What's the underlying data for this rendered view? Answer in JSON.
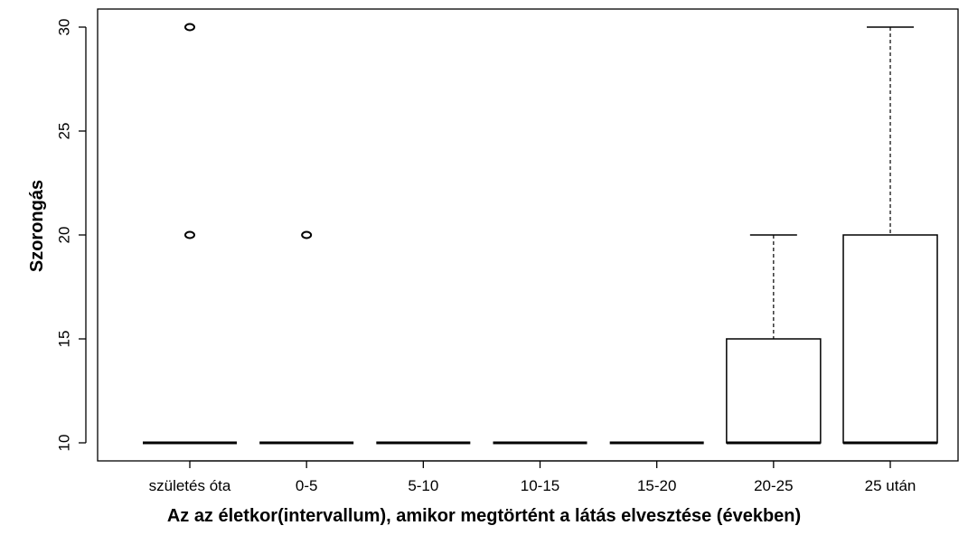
{
  "chart_data": {
    "type": "boxplot",
    "title": "",
    "xlabel": "Az az életkor(intervallum), amikor megtörtént a látás elvesztése (években)",
    "ylabel": "Szorongás",
    "ylim": [
      9.5,
      30.8
    ],
    "yticks": [
      "10",
      "15",
      "20",
      "25",
      "30"
    ],
    "ytick_values": [
      10,
      15,
      20,
      25,
      30
    ],
    "categories": [
      "születés óta",
      "0-5",
      "5-10",
      "10-15",
      "15-20",
      "20-25",
      "25 után"
    ],
    "boxes": [
      {
        "category": "születés óta",
        "min": 10,
        "q1": 10,
        "median": 10,
        "q3": 10,
        "max": 10,
        "outliers": [
          20,
          30
        ]
      },
      {
        "category": "0-5",
        "min": 10,
        "q1": 10,
        "median": 10,
        "q3": 10,
        "max": 10,
        "outliers": [
          20
        ]
      },
      {
        "category": "5-10",
        "min": 10,
        "q1": 10,
        "median": 10,
        "q3": 10,
        "max": 10,
        "outliers": []
      },
      {
        "category": "10-15",
        "min": 10,
        "q1": 10,
        "median": 10,
        "q3": 10,
        "max": 10,
        "outliers": []
      },
      {
        "category": "15-20",
        "min": 10,
        "q1": 10,
        "median": 10,
        "q3": 10,
        "max": 10,
        "outliers": []
      },
      {
        "category": "20-25",
        "min": 10,
        "q1": 10,
        "median": 10,
        "q3": 15,
        "max": 20,
        "outliers": []
      },
      {
        "category": "25 után",
        "min": 10,
        "q1": 10,
        "median": 10,
        "q3": 20,
        "max": 30,
        "outliers": []
      }
    ],
    "grid": false,
    "box_fill": "#ffffff",
    "line_color": "#000000"
  }
}
